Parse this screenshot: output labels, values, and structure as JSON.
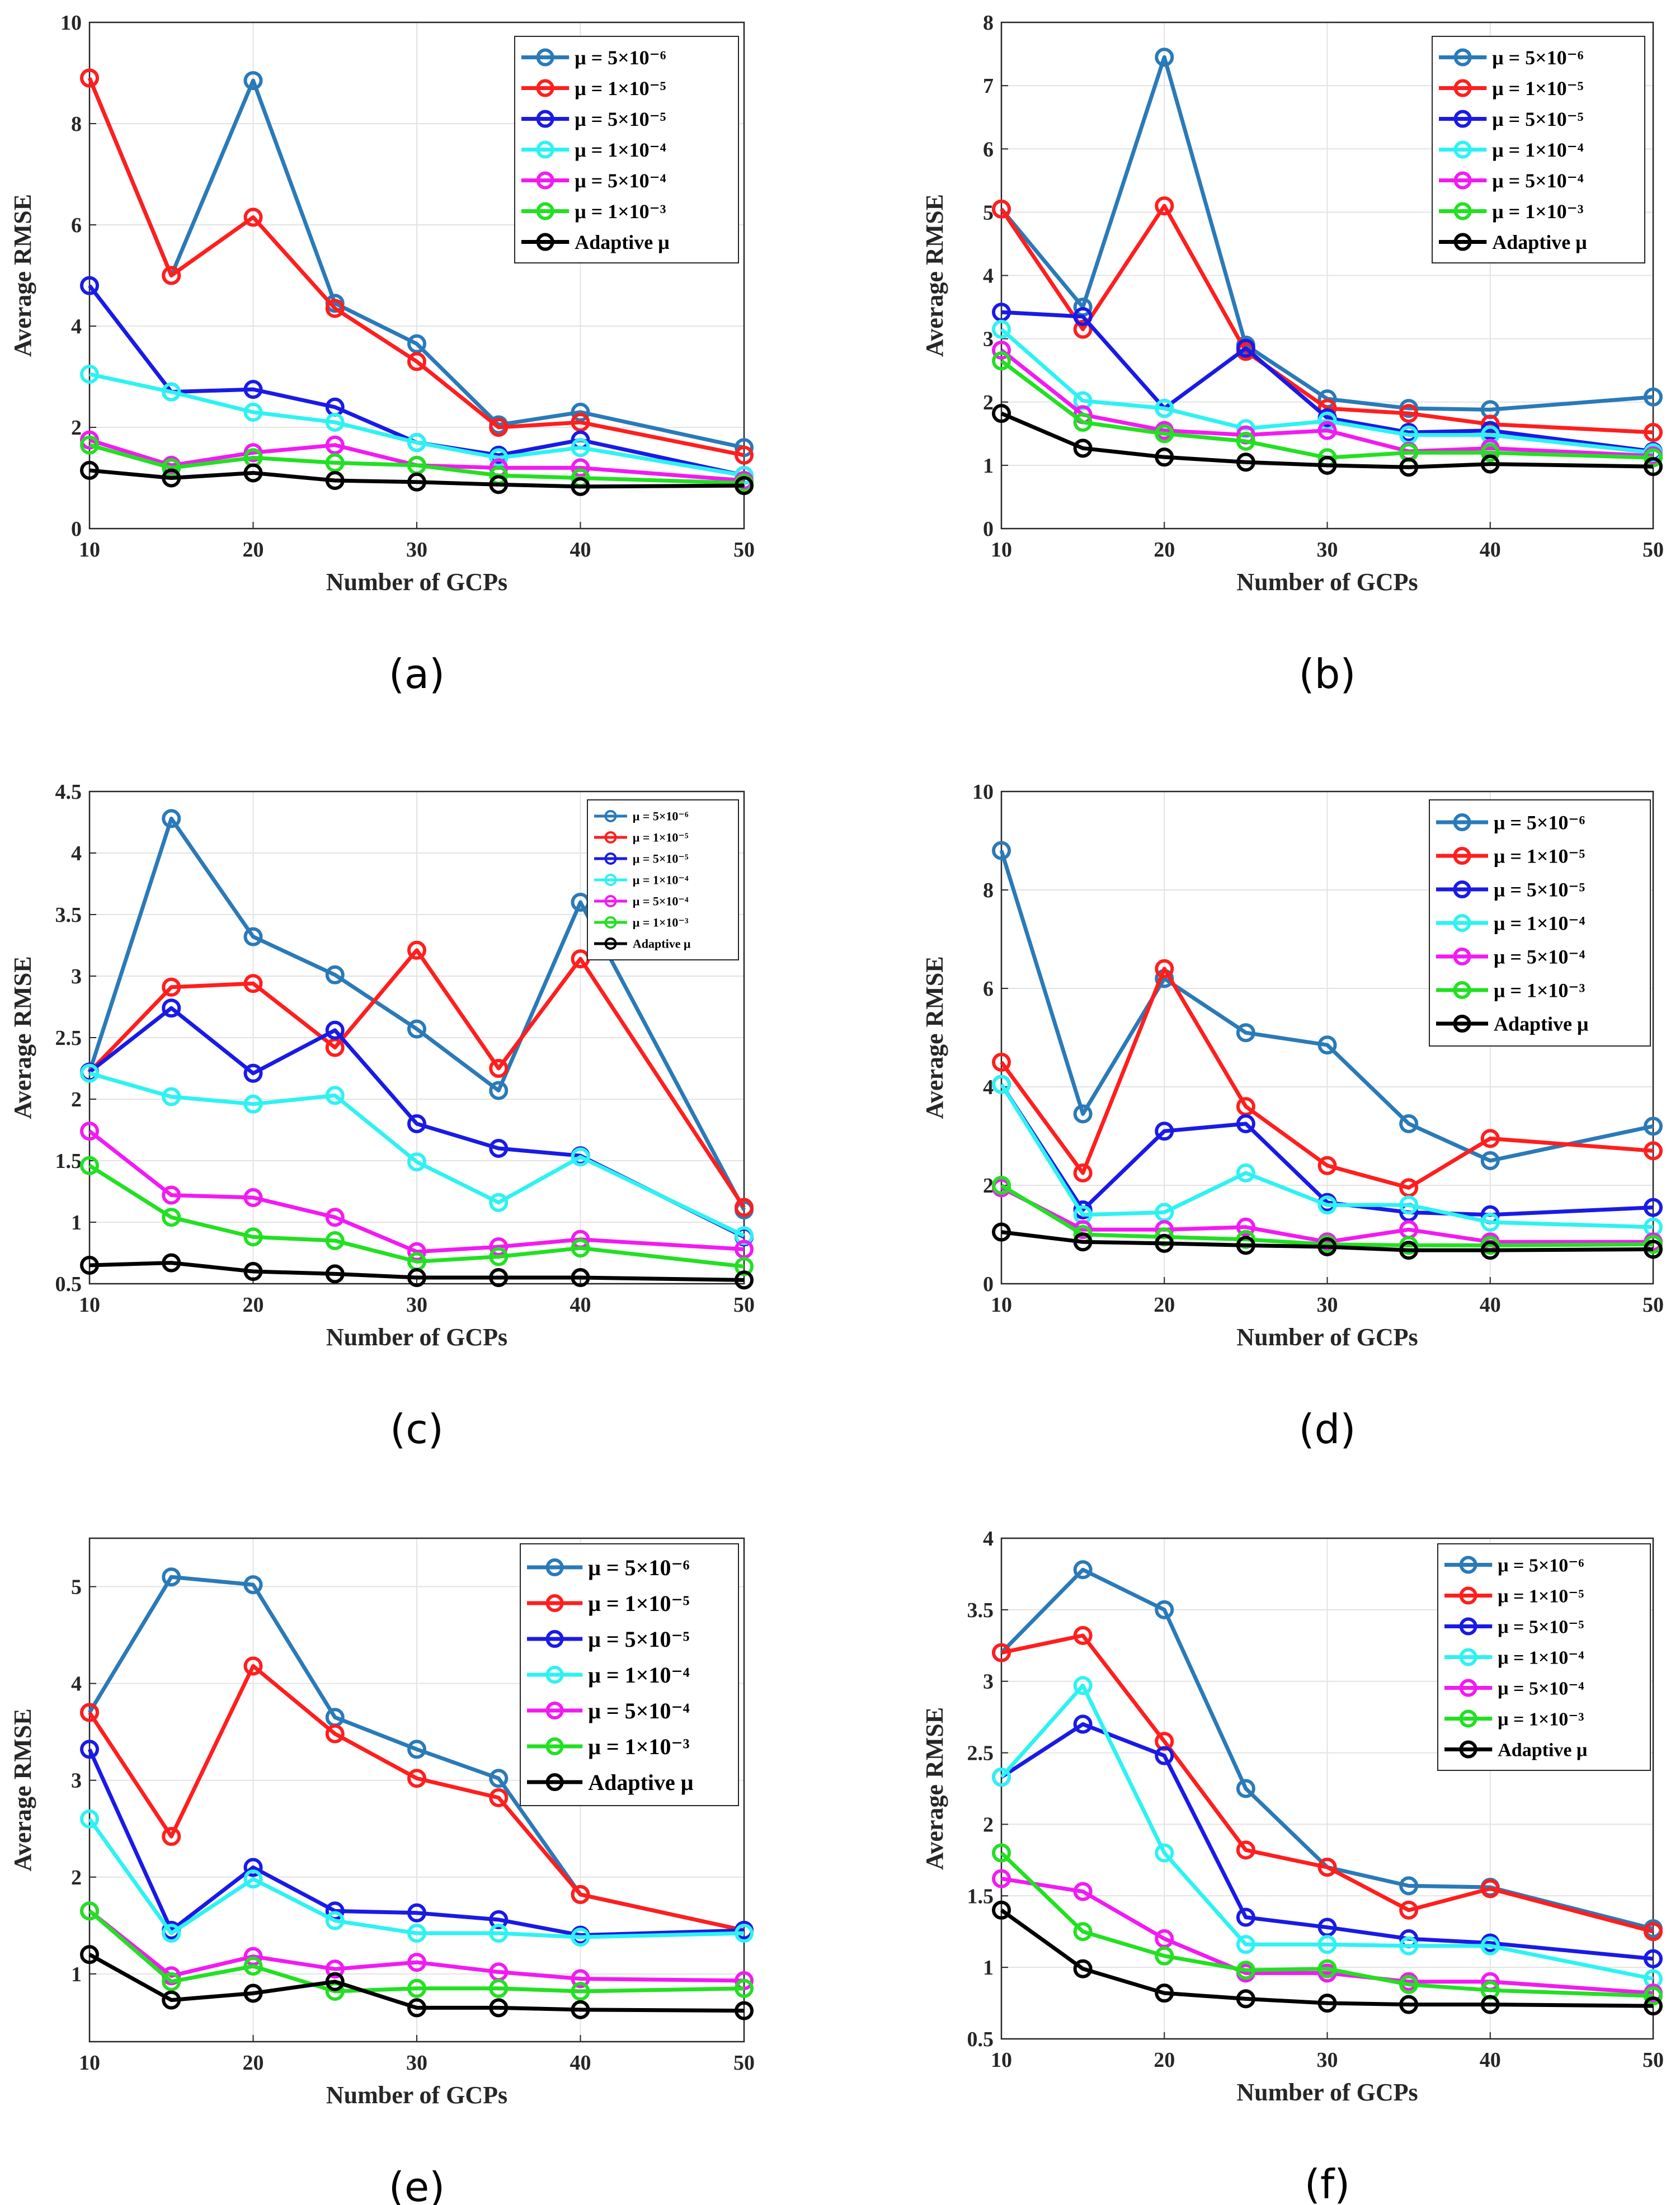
{
  "figure": {
    "colors": {
      "mu_5e-6": "#2A7AB8",
      "mu_1e-5": "#FF1E1E",
      "mu_5e-5": "#1A1AE6",
      "mu_1e-4": "#2EF2F2",
      "mu_5e-4": "#F21AF2",
      "mu_1e-3": "#22E022",
      "adaptive": "#000000"
    }
  },
  "chart_data": [
    {
      "type": "line",
      "panel_label": "(a)",
      "xlabel": "Number of GCPs",
      "ylabel": "Average RMSE",
      "x": [
        10,
        15,
        20,
        25,
        30,
        35,
        40,
        50
      ],
      "xticks": [
        "10",
        "20",
        "30",
        "40",
        "50"
      ],
      "xlim": [
        10,
        50
      ],
      "ylim": [
        0,
        10
      ],
      "yticks": [
        "0",
        "2",
        "4",
        "6",
        "8",
        "10"
      ],
      "legend_position": "top-right",
      "series": [
        {
          "name": "μ = 5×10⁻⁶",
          "key": "mu_5e-6",
          "values": [
            8.9,
            5.0,
            8.85,
            4.45,
            3.65,
            2.05,
            2.3,
            1.6
          ]
        },
        {
          "name": "μ = 1×10⁻⁵",
          "key": "mu_1e-5",
          "values": [
            8.9,
            5.0,
            6.15,
            4.35,
            3.3,
            2.0,
            2.1,
            1.45
          ]
        },
        {
          "name": "μ = 5×10⁻⁵",
          "key": "mu_5e-5",
          "values": [
            4.8,
            2.7,
            2.75,
            2.4,
            1.7,
            1.45,
            1.75,
            1.05
          ]
        },
        {
          "name": "μ = 1×10⁻⁴",
          "key": "mu_1e-4",
          "values": [
            3.05,
            2.7,
            2.3,
            2.1,
            1.7,
            1.4,
            1.6,
            1.05
          ]
        },
        {
          "name": "μ = 5×10⁻⁴",
          "key": "mu_5e-4",
          "values": [
            1.75,
            1.25,
            1.5,
            1.65,
            1.25,
            1.2,
            1.2,
            0.95
          ]
        },
        {
          "name": "μ = 1×10⁻³",
          "key": "mu_1e-3",
          "values": [
            1.65,
            1.2,
            1.4,
            1.3,
            1.25,
            1.05,
            1.0,
            0.9
          ]
        },
        {
          "name": "Adaptive μ",
          "key": "adaptive",
          "values": [
            1.15,
            1.0,
            1.1,
            0.95,
            0.92,
            0.87,
            0.83,
            0.85
          ]
        }
      ]
    },
    {
      "type": "line",
      "panel_label": "(b)",
      "xlabel": "Number of GCPs",
      "ylabel": "Average RMSE",
      "x": [
        10,
        15,
        20,
        25,
        30,
        35,
        40,
        50
      ],
      "xticks": [
        "10",
        "20",
        "30",
        "40",
        "50"
      ],
      "xlim": [
        10,
        50
      ],
      "ylim": [
        0,
        8
      ],
      "yticks": [
        "0",
        "1",
        "2",
        "3",
        "4",
        "5",
        "6",
        "7",
        "8"
      ],
      "legend_position": "top-right",
      "series": [
        {
          "name": "μ = 5×10⁻⁶",
          "key": "mu_5e-6",
          "values": [
            5.05,
            3.5,
            7.45,
            2.9,
            2.05,
            1.9,
            1.88,
            2.08
          ]
        },
        {
          "name": "μ = 1×10⁻⁵",
          "key": "mu_1e-5",
          "values": [
            5.05,
            3.15,
            5.1,
            2.8,
            1.9,
            1.82,
            1.65,
            1.52
          ]
        },
        {
          "name": "μ = 5×10⁻⁵",
          "key": "mu_5e-5",
          "values": [
            3.42,
            3.35,
            1.9,
            2.85,
            1.75,
            1.52,
            1.55,
            1.22
          ]
        },
        {
          "name": "μ = 1×10⁻⁴",
          "key": "mu_1e-4",
          "values": [
            3.15,
            2.02,
            1.9,
            1.58,
            1.7,
            1.48,
            1.48,
            1.2
          ]
        },
        {
          "name": "μ = 5×10⁻⁴",
          "key": "mu_5e-4",
          "values": [
            2.82,
            1.8,
            1.55,
            1.48,
            1.55,
            1.22,
            1.27,
            1.15
          ]
        },
        {
          "name": "μ = 1×10⁻³",
          "key": "mu_1e-3",
          "values": [
            2.65,
            1.68,
            1.5,
            1.38,
            1.12,
            1.2,
            1.2,
            1.12
          ]
        },
        {
          "name": "Adaptive μ",
          "key": "adaptive",
          "values": [
            1.82,
            1.27,
            1.13,
            1.05,
            1.0,
            0.97,
            1.02,
            0.98
          ]
        }
      ]
    },
    {
      "type": "line",
      "panel_label": "(c)",
      "xlabel": "Number of GCPs",
      "ylabel": "Average RMSE",
      "x": [
        10,
        15,
        20,
        25,
        30,
        35,
        40,
        50
      ],
      "xticks": [
        "10",
        "20",
        "30",
        "40",
        "50"
      ],
      "xlim": [
        10,
        50
      ],
      "ylim": [
        0.5,
        4.5
      ],
      "yticks": [
        "0.5",
        "1",
        "1.5",
        "2",
        "2.5",
        "3",
        "3.5",
        "4",
        "4.5"
      ],
      "legend_position": "top-right",
      "series": [
        {
          "name": "μ = 5×10⁻⁶",
          "key": "mu_5e-6",
          "values": [
            2.22,
            4.28,
            3.32,
            3.01,
            2.57,
            2.07,
            3.6,
            1.1
          ]
        },
        {
          "name": "μ = 1×10⁻⁵",
          "key": "mu_1e-5",
          "values": [
            2.22,
            2.91,
            2.94,
            2.42,
            3.21,
            2.25,
            3.14,
            1.12
          ]
        },
        {
          "name": "μ = 5×10⁻⁵",
          "key": "mu_5e-5",
          "values": [
            2.22,
            2.74,
            2.21,
            2.56,
            1.8,
            1.6,
            1.54,
            0.88
          ]
        },
        {
          "name": "μ = 1×10⁻⁴",
          "key": "mu_1e-4",
          "values": [
            2.21,
            2.02,
            1.96,
            2.03,
            1.49,
            1.16,
            1.53,
            0.89
          ]
        },
        {
          "name": "μ = 5×10⁻⁴",
          "key": "mu_5e-4",
          "values": [
            1.74,
            1.22,
            1.2,
            1.04,
            0.76,
            0.8,
            0.86,
            0.78
          ]
        },
        {
          "name": "μ = 1×10⁻³",
          "key": "mu_1e-3",
          "values": [
            1.46,
            1.04,
            0.88,
            0.85,
            0.68,
            0.72,
            0.79,
            0.64
          ]
        },
        {
          "name": "Adaptive μ",
          "key": "adaptive",
          "values": [
            0.65,
            0.67,
            0.6,
            0.58,
            0.55,
            0.55,
            0.55,
            0.53
          ]
        }
      ]
    },
    {
      "type": "line",
      "panel_label": "(d)",
      "xlabel": "Number of GCPs",
      "ylabel": "Average RMSE",
      "x": [
        10,
        15,
        20,
        25,
        30,
        35,
        40,
        50
      ],
      "xticks": [
        "10",
        "20",
        "30",
        "40",
        "50"
      ],
      "xlim": [
        10,
        50
      ],
      "ylim": [
        0,
        10
      ],
      "yticks": [
        "0",
        "2",
        "4",
        "6",
        "8",
        "10"
      ],
      "legend_position": "top-right",
      "series": [
        {
          "name": "μ = 5×10⁻⁶",
          "key": "mu_5e-6",
          "values": [
            8.8,
            3.45,
            6.2,
            5.1,
            4.85,
            3.25,
            2.5,
            3.2
          ]
        },
        {
          "name": "μ = 1×10⁻⁵",
          "key": "mu_1e-5",
          "values": [
            4.5,
            2.25,
            6.4,
            3.6,
            2.4,
            1.95,
            2.95,
            2.7
          ]
        },
        {
          "name": "μ = 5×10⁻⁵",
          "key": "mu_5e-5",
          "values": [
            4.05,
            1.5,
            3.1,
            3.25,
            1.65,
            1.45,
            1.4,
            1.55
          ]
        },
        {
          "name": "μ = 1×10⁻⁴",
          "key": "mu_1e-4",
          "values": [
            4.05,
            1.4,
            1.45,
            2.25,
            1.6,
            1.6,
            1.25,
            1.15
          ]
        },
        {
          "name": "μ = 5×10⁻⁴",
          "key": "mu_5e-4",
          "values": [
            1.95,
            1.1,
            1.1,
            1.15,
            0.85,
            1.1,
            0.85,
            0.85
          ]
        },
        {
          "name": "μ = 1×10⁻³",
          "key": "mu_1e-3",
          "values": [
            2.0,
            1.0,
            0.95,
            0.9,
            0.8,
            0.78,
            0.78,
            0.8
          ]
        },
        {
          "name": "Adaptive μ",
          "key": "adaptive",
          "values": [
            1.05,
            0.85,
            0.82,
            0.78,
            0.75,
            0.68,
            0.68,
            0.7
          ]
        }
      ]
    },
    {
      "type": "line",
      "panel_label": "(e)",
      "xlabel": "Number of GCPs",
      "ylabel": "Average RMSE",
      "x": [
        10,
        15,
        20,
        25,
        30,
        35,
        40,
        50
      ],
      "xticks": [
        "10",
        "20",
        "30",
        "40",
        "50"
      ],
      "xlim": [
        10,
        50
      ],
      "ylim": [
        0.3,
        5.5
      ],
      "yticks": [
        "1",
        "2",
        "3",
        "4",
        "5"
      ],
      "legend_position": "top-right",
      "series": [
        {
          "name": "μ = 5×10⁻⁶",
          "key": "mu_5e-6",
          "values": [
            3.7,
            5.1,
            5.02,
            3.65,
            3.32,
            3.02,
            1.82,
            1.45
          ]
        },
        {
          "name": "μ = 1×10⁻⁵",
          "key": "mu_1e-5",
          "values": [
            3.7,
            2.42,
            4.18,
            3.48,
            3.02,
            2.82,
            1.82,
            1.45
          ]
        },
        {
          "name": "μ = 5×10⁻⁵",
          "key": "mu_5e-5",
          "values": [
            3.32,
            1.45,
            2.1,
            1.65,
            1.63,
            1.56,
            1.4,
            1.45
          ]
        },
        {
          "name": "μ = 1×10⁻⁴",
          "key": "mu_1e-4",
          "values": [
            2.6,
            1.42,
            1.98,
            1.55,
            1.42,
            1.42,
            1.38,
            1.42
          ]
        },
        {
          "name": "μ = 5×10⁻⁴",
          "key": "mu_5e-4",
          "values": [
            1.65,
            0.98,
            1.18,
            1.05,
            1.12,
            1.02,
            0.95,
            0.93
          ]
        },
        {
          "name": "μ = 1×10⁻³",
          "key": "mu_1e-3",
          "values": [
            1.65,
            0.92,
            1.08,
            0.82,
            0.85,
            0.85,
            0.82,
            0.85
          ]
        },
        {
          "name": "Adaptive μ",
          "key": "adaptive",
          "values": [
            1.2,
            0.73,
            0.8,
            0.92,
            0.65,
            0.65,
            0.63,
            0.62
          ]
        }
      ]
    },
    {
      "type": "line",
      "panel_label": "(f)",
      "xlabel": "Number of GCPs",
      "ylabel": "Average RMSE",
      "x": [
        10,
        15,
        20,
        25,
        30,
        35,
        40,
        50
      ],
      "xticks": [
        "10",
        "20",
        "30",
        "40",
        "50"
      ],
      "xlim": [
        10,
        50
      ],
      "ylim": [
        0.5,
        4
      ],
      "yticks": [
        "0.5",
        "1",
        "1.5",
        "2",
        "2.5",
        "3",
        "3.5",
        "4"
      ],
      "legend_position": "top-right",
      "series": [
        {
          "name": "μ = 5×10⁻⁶",
          "key": "mu_5e-6",
          "values": [
            3.2,
            3.78,
            3.5,
            2.25,
            1.7,
            1.57,
            1.56,
            1.27
          ]
        },
        {
          "name": "μ = 1×10⁻⁵",
          "key": "mu_1e-5",
          "values": [
            3.2,
            3.32,
            2.58,
            1.82,
            1.7,
            1.4,
            1.55,
            1.25
          ]
        },
        {
          "name": "μ = 5×10⁻⁵",
          "key": "mu_5e-5",
          "values": [
            2.33,
            2.7,
            2.48,
            1.35,
            1.28,
            1.2,
            1.17,
            1.06
          ]
        },
        {
          "name": "μ = 1×10⁻⁴",
          "key": "mu_1e-4",
          "values": [
            2.33,
            2.97,
            1.8,
            1.16,
            1.16,
            1.15,
            1.15,
            0.92
          ]
        },
        {
          "name": "μ = 5×10⁻⁴",
          "key": "mu_5e-4",
          "values": [
            1.62,
            1.53,
            1.2,
            0.96,
            0.96,
            0.9,
            0.9,
            0.82
          ]
        },
        {
          "name": "μ = 1×10⁻³",
          "key": "mu_1e-3",
          "values": [
            1.8,
            1.25,
            1.08,
            0.98,
            0.99,
            0.88,
            0.84,
            0.8
          ]
        },
        {
          "name": "Adaptive μ",
          "key": "adaptive",
          "values": [
            1.4,
            0.99,
            0.82,
            0.78,
            0.75,
            0.74,
            0.74,
            0.73
          ]
        }
      ]
    }
  ]
}
